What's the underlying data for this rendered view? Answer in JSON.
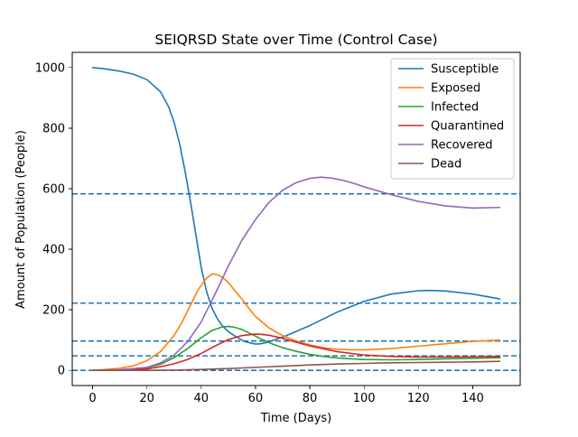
{
  "chart_data": {
    "type": "line",
    "title": "SEIQRSD State over Time (Control Case)",
    "xlabel": "Time (Days)",
    "ylabel": "Amount of Population (People)",
    "xlim": [
      -7.5,
      157.5
    ],
    "ylim": [
      -50,
      1050
    ],
    "xticks": [
      0,
      20,
      40,
      60,
      80,
      100,
      120,
      140
    ],
    "yticks": [
      0,
      200,
      400,
      600,
      800,
      1000
    ],
    "grid": false,
    "legend_position": "top-right",
    "series": [
      {
        "name": "Susceptible",
        "color": "#1f77b4",
        "x": [
          0,
          5,
          10,
          15,
          20,
          25,
          28,
          30,
          32,
          34,
          36,
          38,
          40,
          42,
          44,
          46,
          48,
          50,
          53,
          56,
          60,
          62,
          64,
          66,
          70,
          80,
          90,
          100,
          110,
          120,
          124,
          130,
          140,
          150
        ],
        "y": [
          1000,
          995,
          988,
          978,
          960,
          920,
          870,
          820,
          750,
          660,
          560,
          450,
          340,
          260,
          205,
          170,
          145,
          128,
          110,
          95,
          87,
          88,
          92,
          98,
          110,
          148,
          192,
          228,
          252,
          263,
          264,
          262,
          252,
          236
        ]
      },
      {
        "name": "Exposed",
        "color": "#ff7f0e",
        "x": [
          0,
          5,
          10,
          15,
          20,
          25,
          30,
          33,
          36,
          39,
          42,
          44,
          45,
          46,
          48,
          50,
          52,
          55,
          58,
          60,
          65,
          70,
          75,
          80,
          85,
          90,
          95,
          100,
          110,
          120,
          130,
          140,
          150
        ],
        "y": [
          0,
          3,
          7,
          15,
          32,
          62,
          115,
          160,
          215,
          268,
          305,
          318,
          318,
          316,
          306,
          290,
          268,
          235,
          200,
          178,
          140,
          115,
          97,
          84,
          75,
          70,
          68,
          68,
          72,
          80,
          88,
          96,
          100
        ]
      },
      {
        "name": "Infected",
        "color": "#2ca02c",
        "x": [
          0,
          10,
          20,
          25,
          30,
          35,
          40,
          44,
          48,
          50,
          52,
          55,
          58,
          62,
          66,
          70,
          75,
          80,
          85,
          90,
          100,
          110,
          120,
          130,
          140,
          150
        ],
        "y": [
          0,
          2,
          9,
          20,
          42,
          72,
          108,
          132,
          144,
          145,
          143,
          135,
          122,
          104,
          88,
          75,
          63,
          53,
          46,
          41,
          36,
          35,
          36,
          38,
          40,
          42
        ]
      },
      {
        "name": "Quarantined",
        "color": "#d62728",
        "x": [
          0,
          10,
          20,
          25,
          30,
          35,
          40,
          45,
          50,
          55,
          60,
          62,
          65,
          70,
          75,
          80,
          90,
          100,
          110,
          120,
          130,
          140,
          150
        ],
        "y": [
          0,
          1,
          5,
          12,
          22,
          36,
          56,
          80,
          102,
          115,
          120,
          119,
          116,
          106,
          93,
          81,
          62,
          51,
          46,
          44,
          44,
          45,
          46
        ]
      },
      {
        "name": "Recovered",
        "color": "#9467bd",
        "x": [
          0,
          10,
          20,
          25,
          30,
          35,
          40,
          45,
          50,
          55,
          60,
          65,
          70,
          75,
          80,
          84,
          88,
          92,
          96,
          100,
          110,
          120,
          130,
          140,
          150
        ],
        "y": [
          0,
          2,
          10,
          25,
          50,
          95,
          160,
          250,
          345,
          430,
          498,
          555,
          595,
          620,
          634,
          638,
          635,
          628,
          618,
          606,
          580,
          558,
          543,
          536,
          538
        ]
      },
      {
        "name": "Dead",
        "color": "#8c564b",
        "x": [
          0,
          10,
          20,
          30,
          40,
          50,
          60,
          70,
          80,
          90,
          100,
          110,
          120,
          130,
          140,
          150
        ],
        "y": [
          0,
          0,
          0,
          1,
          3,
          6,
          10,
          14,
          18,
          21,
          23,
          25,
          26,
          27,
          28,
          30
        ]
      }
    ],
    "horizontal_lines": [
      {
        "y": 583,
        "color": "#1f77b4",
        "style": "dashed"
      },
      {
        "y": 222,
        "color": "#1f77b4",
        "style": "dashed"
      },
      {
        "y": 97,
        "color": "#1f77b4",
        "style": "dashed"
      },
      {
        "y": 48,
        "color": "#1f77b4",
        "style": "dashed"
      },
      {
        "y": 0,
        "color": "#1f77b4",
        "style": "dashed"
      }
    ]
  }
}
